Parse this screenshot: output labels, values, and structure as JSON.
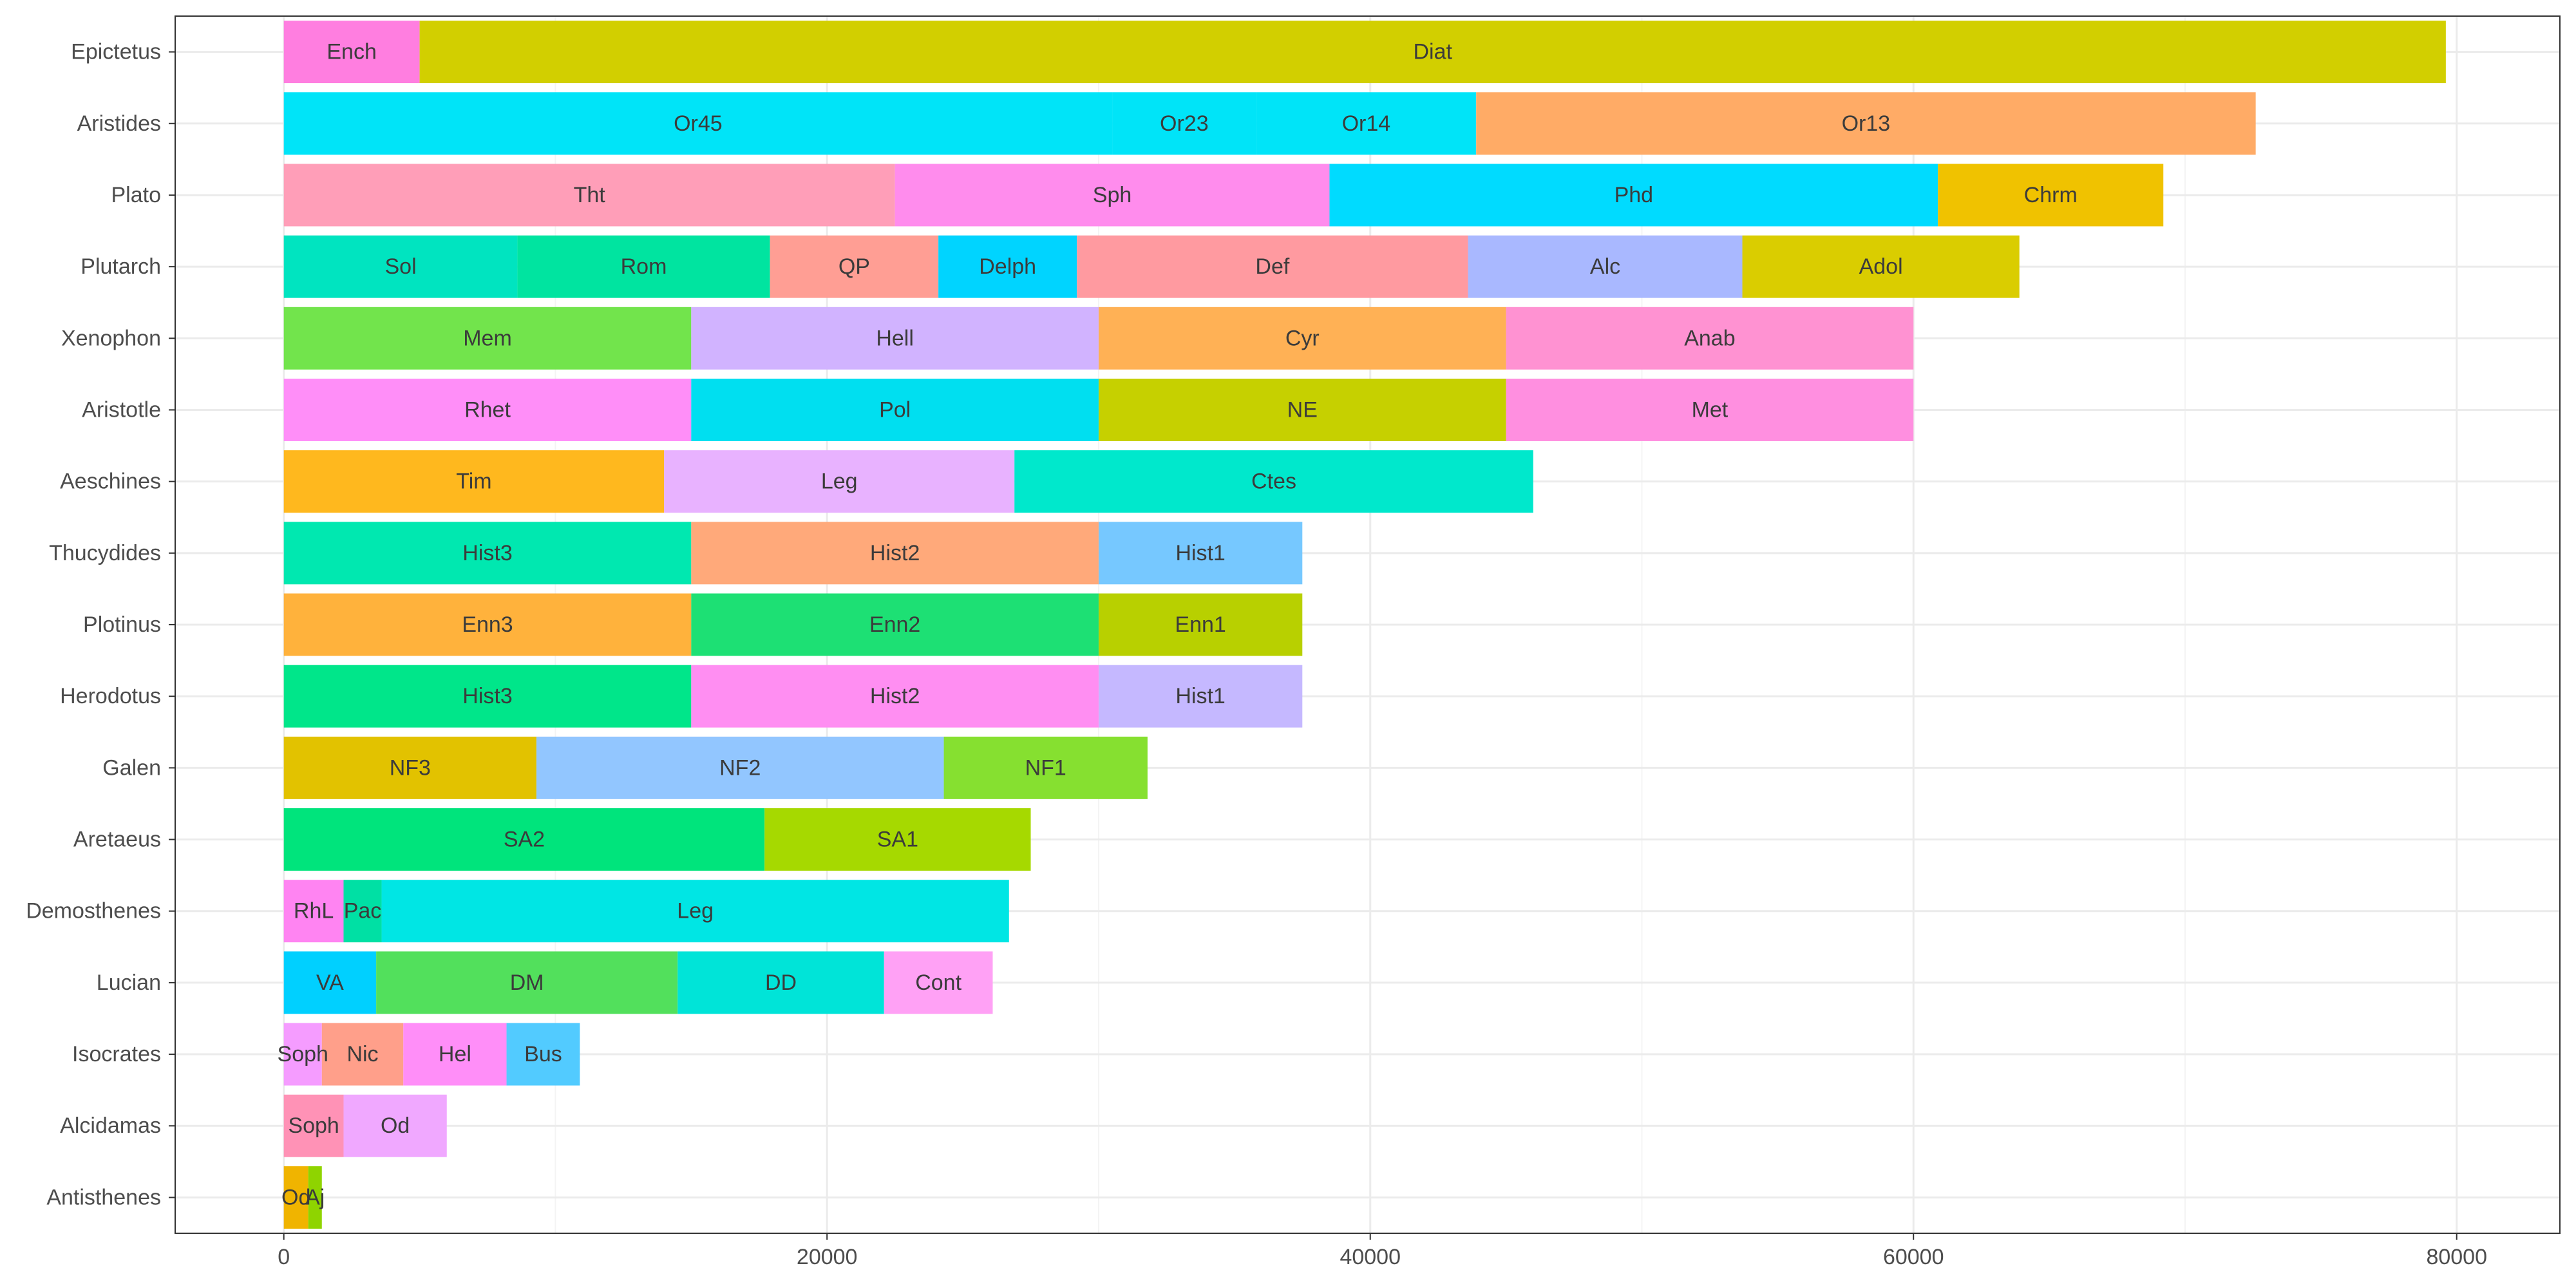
{
  "chart_data": {
    "type": "bar",
    "orientation": "horizontal",
    "stacked": true,
    "title": "",
    "xlabel": "",
    "ylabel": "",
    "xlim": [
      -4000,
      83800
    ],
    "xticks": [
      0,
      20000,
      40000,
      60000,
      80000
    ],
    "xtick_labels": [
      "0",
      "20000",
      "40000",
      "60000",
      "80000"
    ],
    "grid": true,
    "legend": "none",
    "categories": [
      "Epictetus",
      "Aristides",
      "Plato",
      "Plutarch",
      "Xenophon",
      "Aristotle",
      "Aeschines",
      "Thucydides",
      "Plotinus",
      "Herodotus",
      "Galen",
      "Aretaeus",
      "Demosthenes",
      "Lucian",
      "Isocrates",
      "Alcidamas",
      "Antisthenes"
    ],
    "bars": [
      {
        "category": "Epictetus",
        "segments": [
          {
            "label": "Ench",
            "value": 5000,
            "color": "#ff7ee0"
          },
          {
            "label": "Diat",
            "value": 74600,
            "color": "#d2cf00"
          }
        ]
      },
      {
        "category": "Aristides",
        "segments": [
          {
            "label": "Or45",
            "value": 30500,
            "color": "#00e4f8"
          },
          {
            "label": "Or23",
            "value": 5300,
            "color": "#00e4f8"
          },
          {
            "label": "Or14",
            "value": 8100,
            "color": "#00e4f8"
          },
          {
            "label": "Or13",
            "value": 28700,
            "color": "#ffab66"
          }
        ]
      },
      {
        "category": "Plato",
        "segments": [
          {
            "label": "Tht",
            "value": 22500,
            "color": "#ff9eb8"
          },
          {
            "label": "Sph",
            "value": 16000,
            "color": "#ff8ced"
          },
          {
            "label": "Phd",
            "value": 22400,
            "color": "#00dbff"
          },
          {
            "label": "Chrm",
            "value": 8300,
            "color": "#f0c200"
          }
        ]
      },
      {
        "category": "Plutarch",
        "segments": [
          {
            "label": "Sol",
            "value": 8600,
            "color": "#00e4c0"
          },
          {
            "label": "Rom",
            "value": 9300,
            "color": "#00e4a0"
          },
          {
            "label": "QP",
            "value": 6200,
            "color": "#ff9e94"
          },
          {
            "label": "Delph",
            "value": 5100,
            "color": "#00d4ff"
          },
          {
            "label": "Def",
            "value": 14400,
            "color": "#ff9aa0"
          },
          {
            "label": "Alc",
            "value": 10100,
            "color": "#a9b8ff"
          },
          {
            "label": "Adol",
            "value": 10200,
            "color": "#dacd00"
          }
        ]
      },
      {
        "category": "Xenophon",
        "segments": [
          {
            "label": "Mem",
            "value": 15000,
            "color": "#72e44c"
          },
          {
            "label": "Hell",
            "value": 15000,
            "color": "#d1b3ff"
          },
          {
            "label": "Cyr",
            "value": 15000,
            "color": "#ffb155"
          },
          {
            "label": "Anab",
            "value": 15000,
            "color": "#ff92d2"
          }
        ]
      },
      {
        "category": "Aristotle",
        "segments": [
          {
            "label": "Rhet",
            "value": 15000,
            "color": "#ff8ef8"
          },
          {
            "label": "Pol",
            "value": 15000,
            "color": "#00dff0"
          },
          {
            "label": "NE",
            "value": 15000,
            "color": "#c6d000"
          },
          {
            "label": "Met",
            "value": 15000,
            "color": "#ff8fe0"
          }
        ]
      },
      {
        "category": "Aeschines",
        "segments": [
          {
            "label": "Tim",
            "value": 14000,
            "color": "#ffb81e"
          },
          {
            "label": "Leg",
            "value": 12900,
            "color": "#e8b2ff"
          },
          {
            "label": "Ctes",
            "value": 19100,
            "color": "#00e8cc"
          }
        ]
      },
      {
        "category": "Thucydides",
        "segments": [
          {
            "label": "Hist3",
            "value": 15000,
            "color": "#00e8b0"
          },
          {
            "label": "Hist2",
            "value": 15000,
            "color": "#ffa97a"
          },
          {
            "label": "Hist1",
            "value": 7500,
            "color": "#76c8ff"
          }
        ]
      },
      {
        "category": "Plotinus",
        "segments": [
          {
            "label": "Enn3",
            "value": 15000,
            "color": "#ffb23c"
          },
          {
            "label": "Enn2",
            "value": 15000,
            "color": "#1de074"
          },
          {
            "label": "Enn1",
            "value": 7500,
            "color": "#b8d000"
          }
        ]
      },
      {
        "category": "Herodotus",
        "segments": [
          {
            "label": "Hist3",
            "value": 15000,
            "color": "#00e68a"
          },
          {
            "label": "Hist2",
            "value": 15000,
            "color": "#ff8ef2"
          },
          {
            "label": "Hist1",
            "value": 7500,
            "color": "#c5b8ff"
          }
        ]
      },
      {
        "category": "Galen",
        "segments": [
          {
            "label": "NF3",
            "value": 9300,
            "color": "#e2c200"
          },
          {
            "label": "NF2",
            "value": 15000,
            "color": "#92c6ff"
          },
          {
            "label": "NF1",
            "value": 7500,
            "color": "#86e030"
          }
        ]
      },
      {
        "category": "Aretaeus",
        "segments": [
          {
            "label": "SA2",
            "value": 17700,
            "color": "#00e47c"
          },
          {
            "label": "SA1",
            "value": 9800,
            "color": "#a6d900"
          }
        ]
      },
      {
        "category": "Demosthenes",
        "segments": [
          {
            "label": "RhL",
            "value": 2200,
            "color": "#ff84f2"
          },
          {
            "label": "Pac",
            "value": 1400,
            "color": "#00e0a4"
          },
          {
            "label": "Leg",
            "value": 23100,
            "color": "#00e6e4"
          }
        ]
      },
      {
        "category": "Lucian",
        "segments": [
          {
            "label": "VA",
            "value": 3400,
            "color": "#00d0ff"
          },
          {
            "label": "DM",
            "value": 11100,
            "color": "#52e05c"
          },
          {
            "label": "DD",
            "value": 7600,
            "color": "#00e4d8"
          },
          {
            "label": "Cont",
            "value": 4000,
            "color": "#ffa1f5"
          }
        ]
      },
      {
        "category": "Isocrates",
        "segments": [
          {
            "label": "Soph",
            "value": 1400,
            "color": "#f59cff"
          },
          {
            "label": "Nic",
            "value": 3000,
            "color": "#ff9f8a"
          },
          {
            "label": "Hel",
            "value": 3800,
            "color": "#ff8ef8"
          },
          {
            "label": "Bus",
            "value": 2700,
            "color": "#52cbff"
          }
        ]
      },
      {
        "category": "Alcidamas",
        "segments": [
          {
            "label": "Soph",
            "value": 2200,
            "color": "#ff92b6"
          },
          {
            "label": "Od",
            "value": 3800,
            "color": "#f0a8ff"
          }
        ]
      },
      {
        "category": "Antisthenes",
        "segments": [
          {
            "label": "Od",
            "value": 900,
            "color": "#f0b400"
          },
          {
            "label": "Aj",
            "value": 500,
            "color": "#8fd400"
          }
        ]
      }
    ]
  },
  "colors": {
    "background": "#ffffff",
    "panel_border": "#333333",
    "grid_major": "#ebebeb",
    "grid_minor": "#f4f4f4",
    "axis_text": "#4d4d4d",
    "tick": "#333333"
  }
}
